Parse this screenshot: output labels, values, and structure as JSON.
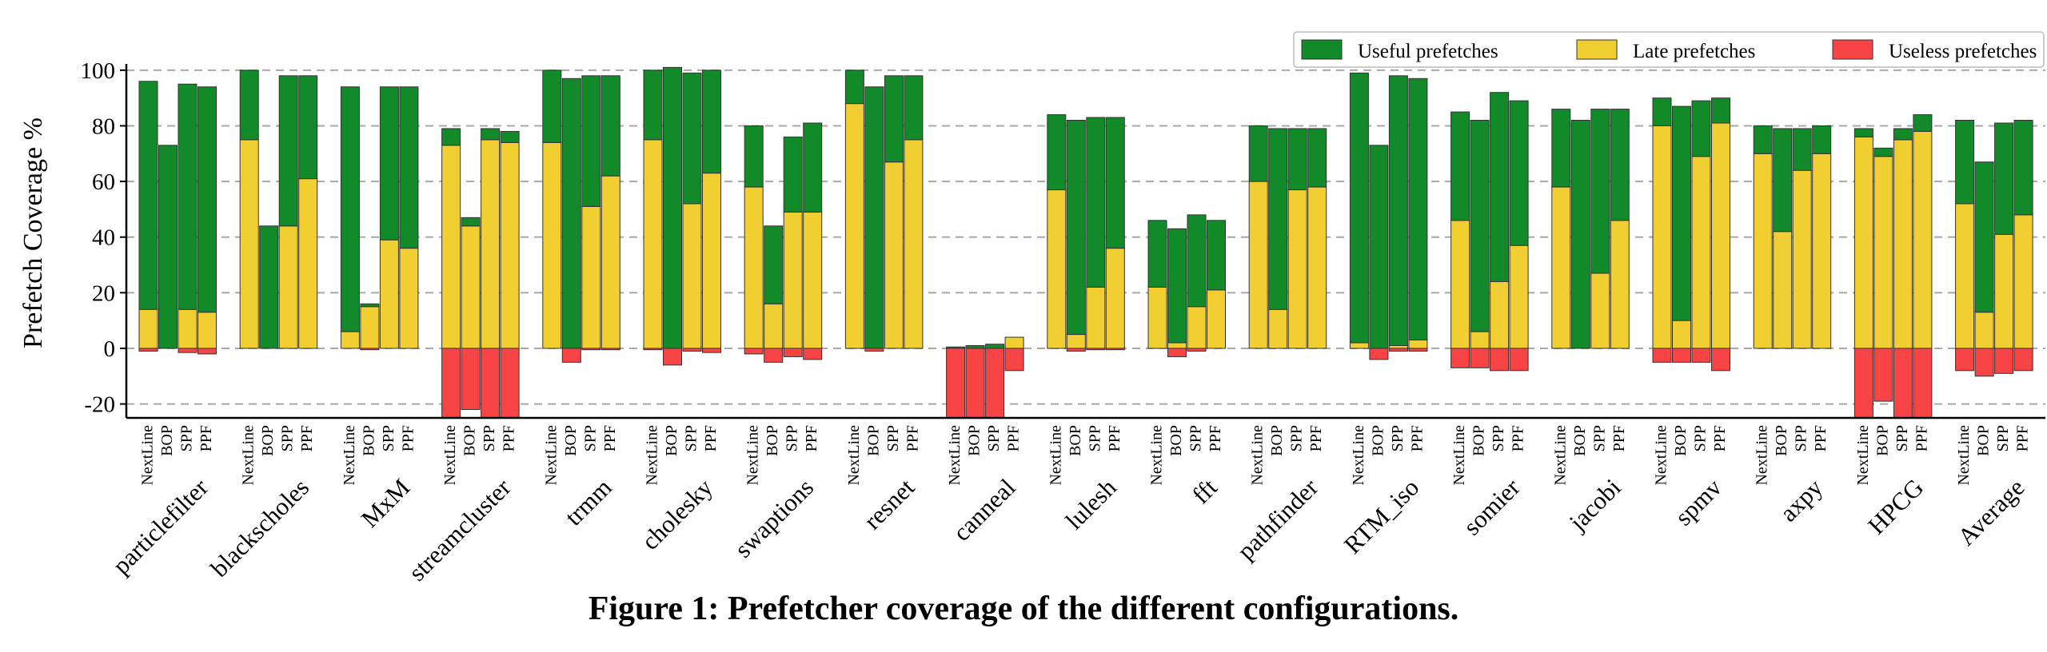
{
  "chart_data": {
    "type": "bar",
    "stacked": true,
    "ylabel": "Prefetch Coverage %",
    "ylim": [
      -25,
      108
    ],
    "yticks": [
      -20,
      0,
      20,
      40,
      60,
      80,
      100
    ],
    "grid": "y-dashed",
    "legend_position": "top-right",
    "configs": [
      "NextLine",
      "BOP",
      "SPP",
      "PPF"
    ],
    "legend": [
      {
        "name": "Useful prefetches",
        "color": "#128a2a"
      },
      {
        "name": "Late prefetches",
        "color": "#f1cf33"
      },
      {
        "name": "Useless prefetches",
        "color": "#f84444"
      }
    ],
    "benchmarks": [
      {
        "name": "particlefilter",
        "late": [
          14,
          0,
          14,
          13
        ],
        "total": [
          96,
          73,
          95,
          94
        ],
        "useless": [
          -1,
          0,
          -1.5,
          -2
        ]
      },
      {
        "name": "blackscholes",
        "late": [
          75,
          0,
          44,
          61
        ],
        "total": [
          100,
          44,
          98,
          98
        ],
        "useless": [
          0,
          0,
          0,
          0
        ]
      },
      {
        "name": "MxM",
        "late": [
          6,
          15,
          39,
          36
        ],
        "total": [
          94,
          16,
          94,
          94
        ],
        "useless": [
          0,
          -0.5,
          0,
          0
        ]
      },
      {
        "name": "streamcluster",
        "late": [
          73,
          44,
          75,
          74
        ],
        "total": [
          79,
          47,
          79,
          78
        ],
        "useless": [
          -25,
          -22,
          -25,
          -25
        ]
      },
      {
        "name": "trmm",
        "late": [
          74,
          0,
          51,
          62
        ],
        "total": [
          100,
          97,
          98,
          98
        ],
        "useless": [
          0,
          -5,
          -0.5,
          -0.5
        ]
      },
      {
        "name": "cholesky",
        "late": [
          75,
          0,
          52,
          63
        ],
        "total": [
          100,
          101,
          99,
          100
        ],
        "useless": [
          -0.5,
          -6,
          -1,
          -1.5
        ]
      },
      {
        "name": "swaptions",
        "late": [
          58,
          16,
          49,
          49
        ],
        "total": [
          80,
          44,
          76,
          81
        ],
        "useless": [
          -2,
          -5,
          -3,
          -4
        ]
      },
      {
        "name": "resnet",
        "late": [
          88,
          0,
          67,
          75
        ],
        "total": [
          100,
          94,
          98,
          98
        ],
        "useless": [
          0,
          -1,
          0,
          0
        ]
      },
      {
        "name": "canneal",
        "late": [
          0,
          0,
          0,
          4
        ],
        "total": [
          0.5,
          1,
          1.5,
          4
        ],
        "useless": [
          -25,
          -25,
          -25,
          -8
        ]
      },
      {
        "name": "lulesh",
        "late": [
          57,
          5,
          22,
          36
        ],
        "total": [
          84,
          82,
          83,
          83
        ],
        "useless": [
          0,
          -1,
          -0.5,
          -0.5
        ]
      },
      {
        "name": "fft",
        "late": [
          22,
          2,
          15,
          21
        ],
        "total": [
          46,
          43,
          48,
          46
        ],
        "useless": [
          0,
          -3,
          -1,
          0
        ]
      },
      {
        "name": "pathfinder",
        "late": [
          60,
          14,
          57,
          58
        ],
        "total": [
          80,
          79,
          79,
          79
        ],
        "useless": [
          0,
          0,
          0,
          0
        ]
      },
      {
        "name": "RTM_iso",
        "late": [
          2,
          0,
          1,
          3
        ],
        "total": [
          99,
          73,
          98,
          97
        ],
        "useless": [
          0,
          -4,
          -1,
          -1
        ]
      },
      {
        "name": "somier",
        "late": [
          46,
          6,
          24,
          37
        ],
        "total": [
          85,
          82,
          92,
          89
        ],
        "useless": [
          -7,
          -7,
          -8,
          -8
        ]
      },
      {
        "name": "jacobi",
        "late": [
          58,
          0,
          27,
          46
        ],
        "total": [
          86,
          82,
          86,
          86
        ],
        "useless": [
          0,
          0,
          0,
          0
        ]
      },
      {
        "name": "spmv",
        "late": [
          80,
          10,
          69,
          81
        ],
        "total": [
          90,
          87,
          89,
          90
        ],
        "useless": [
          -5,
          -5,
          -5,
          -8
        ]
      },
      {
        "name": "axpy",
        "late": [
          70,
          42,
          64,
          70
        ],
        "total": [
          80,
          79,
          79,
          80
        ],
        "useless": [
          0,
          0,
          0,
          0
        ]
      },
      {
        "name": "HPCG",
        "late": [
          76,
          69,
          75,
          78
        ],
        "total": [
          79,
          72,
          79,
          84
        ],
        "useless": [
          -25,
          -19,
          -25,
          -25
        ]
      },
      {
        "name": "Average",
        "late": [
          52,
          13,
          41,
          48
        ],
        "total": [
          82,
          67,
          81,
          82
        ],
        "useless": [
          -8,
          -10,
          -9,
          -8
        ]
      }
    ]
  },
  "caption": "Figure 1: Prefetcher coverage of the different configurations."
}
